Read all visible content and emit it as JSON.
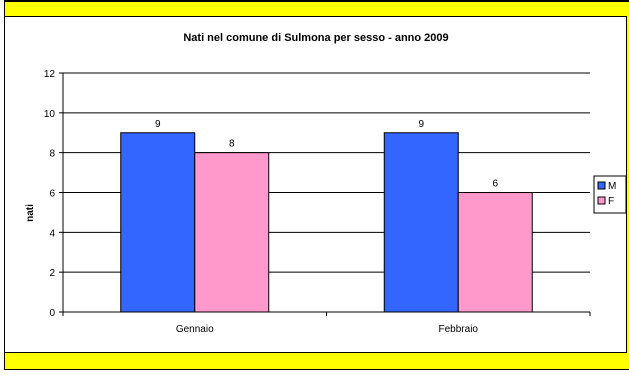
{
  "chart_data": {
    "type": "bar",
    "title": "Nati nel comune di Sulmona per sesso - anno 2009",
    "ylabel": "nati",
    "xlabel": "",
    "categories": [
      "Gennaio",
      "Febbraio"
    ],
    "series": [
      {
        "name": "M",
        "values": [
          9,
          9
        ],
        "color": "#3366ff"
      },
      {
        "name": "F",
        "values": [
          8,
          6
        ],
        "color": "#ff99cc"
      }
    ],
    "ylim": [
      0,
      12
    ],
    "yticks": [
      0,
      2,
      4,
      6,
      8,
      10,
      12
    ],
    "grid": true,
    "legend": "right"
  }
}
